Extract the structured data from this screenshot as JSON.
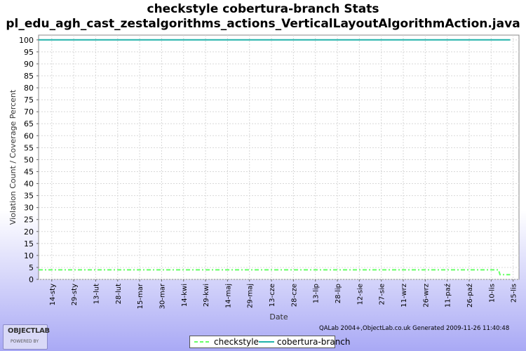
{
  "title_line1": "checkstyle cobertura-branch  Stats",
  "title_line2": "pl_edu_agh_cast_zestalgorithms_actions_VerticalLayoutAlgorithmAction.java",
  "footer": "QALab 2004+,ObjectLab.co.uk Generated 2009-11-26 11:40:48",
  "logo": {
    "main": "OBJECTLAB",
    "sub": "POWERED BY"
  },
  "colors": {
    "checkstyle": "#66ff66",
    "cobertura": "#20b2aa",
    "grid": "#d8d8d8"
  },
  "chart_data": {
    "type": "line",
    "xlabel": "Date",
    "ylabel": "Violation Count / Coverage Percent",
    "ylim": [
      0,
      102
    ],
    "yticks": [
      0,
      5,
      10,
      15,
      20,
      25,
      30,
      35,
      40,
      45,
      50,
      55,
      60,
      65,
      70,
      75,
      80,
      85,
      90,
      95,
      100
    ],
    "xlim": [
      "2009-01-05",
      "2009-11-29"
    ],
    "grid": true,
    "legend_position": "bottom",
    "categories": [
      "14-sty",
      "29-sty",
      "13-lut",
      "28-lut",
      "15-mar",
      "30-mar",
      "14-kwi",
      "29-kwi",
      "14-maj",
      "29-maj",
      "13-cze",
      "28-cze",
      "13-lip",
      "28-lip",
      "12-sie",
      "27-sie",
      "11-wrz",
      "26-wrz",
      "11-paź",
      "26-paź",
      "10-lis",
      "25-lis"
    ],
    "series": [
      {
        "name": "checkstyle",
        "style": "dashed",
        "x": [
          "2009-01-05",
          "2009-11-15",
          "2009-11-16",
          "2009-11-23"
        ],
        "y": [
          4,
          4,
          2,
          2
        ]
      },
      {
        "name": "cobertura-branch",
        "style": "solid",
        "x": [
          "2009-01-05",
          "2009-11-23"
        ],
        "y": [
          100,
          100
        ]
      }
    ]
  }
}
